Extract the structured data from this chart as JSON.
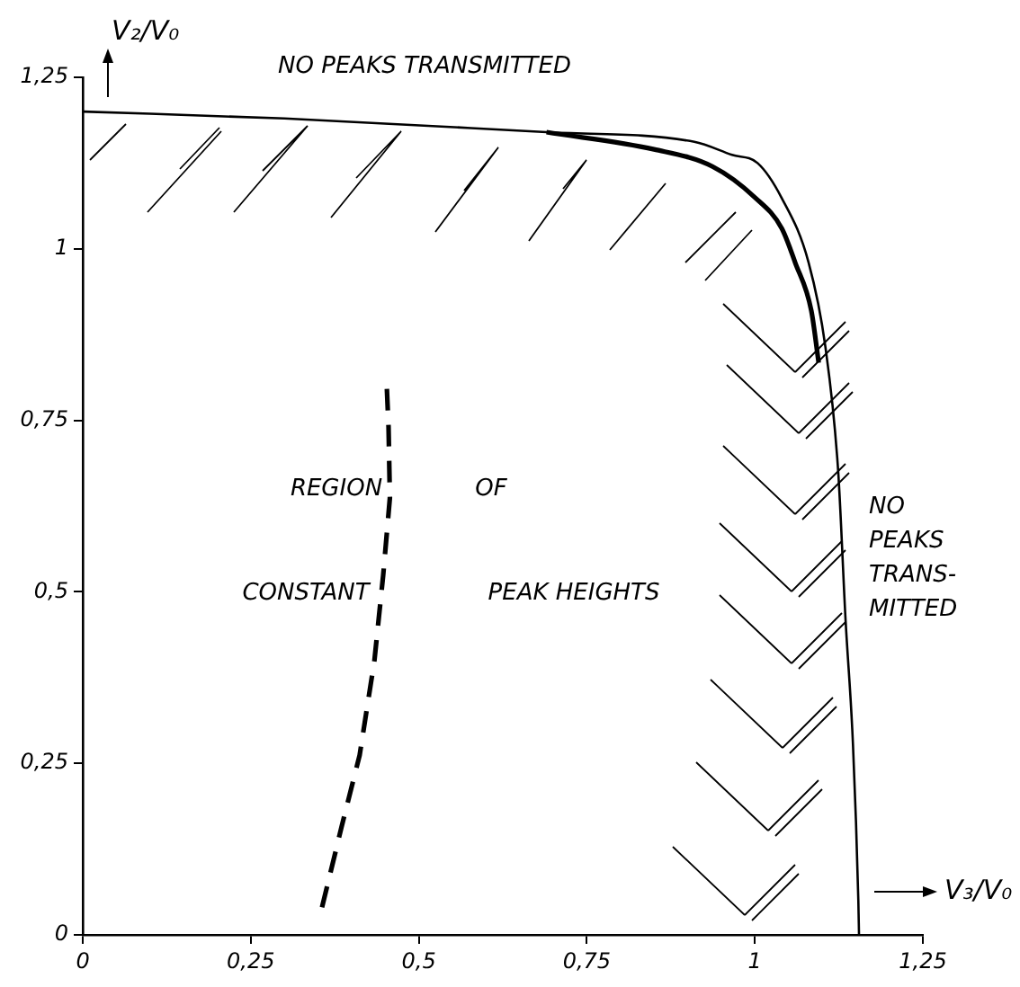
{
  "chart_data": {
    "type": "line",
    "xlabel": "V₃/V₀",
    "ylabel": "V₂/V₀",
    "xlim": [
      0,
      1.25
    ],
    "ylim": [
      0,
      1.25
    ],
    "xticks": [
      0,
      {
        "value": 0.25,
        "label": "0,25"
      },
      {
        "value": 0.5,
        "label": "0,5"
      },
      {
        "value": 0.75,
        "label": "0,75"
      },
      1,
      {
        "value": 1.25,
        "label": "1,25"
      }
    ],
    "yticks": [
      0,
      {
        "value": 0.25,
        "label": "0,25"
      },
      {
        "value": 0.5,
        "label": "0,5"
      },
      {
        "value": 0.75,
        "label": "0,75"
      },
      1,
      {
        "value": 1.25,
        "label": "1,25"
      }
    ],
    "grid": false,
    "legend": false,
    "marker": "none",
    "series": [
      {
        "color": "#000000",
        "x": [
          0,
          0.3,
          0.69,
          0.91,
          0.966,
          1.004,
          1.04,
          1.08,
          1.105,
          1.124,
          1.135,
          1.146,
          1.154,
          1.155
        ],
        "values": [
          1.2,
          1.19,
          1.17,
          1.156,
          1.137,
          1.125,
          1.074,
          0.98,
          0.857,
          0.676,
          0.459,
          0.278,
          0.05,
          0
        ]
      },
      {
        "color": "#000000",
        "x": [
          0.69,
          0.85,
          0.937,
          1.0,
          1.04,
          1.06,
          1.084,
          1.095
        ],
        "values": [
          1.17,
          1.145,
          1.12,
          1.075,
          1.03,
          0.98,
          0.91,
          0.834
        ]
      },
      {
        "color": "#000000",
        "line_style": "dashed",
        "x": [
          0.356,
          0.385,
          0.412,
          0.434,
          0.447,
          0.457,
          0.455,
          0.452
        ],
        "values": [
          0.04,
          0.157,
          0.262,
          0.4,
          0.524,
          0.637,
          0.74,
          0.807
        ]
      }
    ],
    "annotations": [
      "NO PEAKS TRANSMITTED",
      "REGION",
      "OF",
      "CONSTANT",
      "PEAK HEIGHTS",
      "NO\nPEAKS\nTRANS-\nMITTED"
    ]
  }
}
